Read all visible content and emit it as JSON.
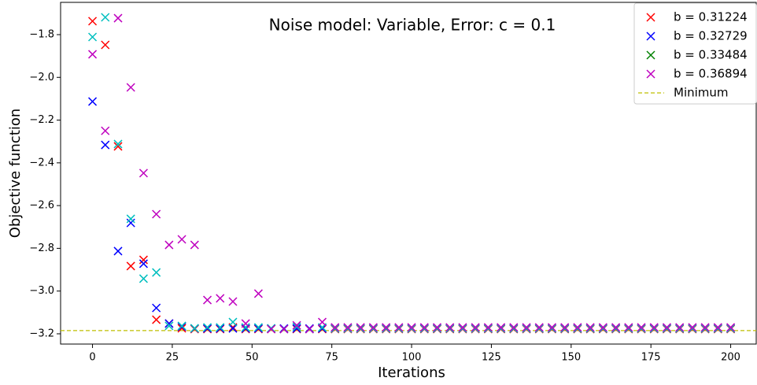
{
  "chart_data": {
    "type": "scatter",
    "title": "Noise model: Variable, Error: c = 0.1",
    "x_label": "Iterations",
    "y_label": "Objective function",
    "x": [
      0,
      4,
      8,
      12,
      16,
      20,
      24,
      28,
      32,
      36,
      40,
      44,
      48,
      52,
      56,
      60,
      64,
      68,
      72,
      76,
      80,
      84,
      88,
      92,
      96,
      100,
      104,
      108,
      112,
      116,
      120,
      124,
      128,
      132,
      136,
      140,
      144,
      148,
      152,
      156,
      160,
      164,
      168,
      172,
      176,
      180,
      184,
      188,
      192,
      196,
      200
    ],
    "series": [
      {
        "name": "b = 0.31224",
        "color": "#ff0000",
        "values": [
          -1.737,
          -1.848,
          -2.323,
          -2.883,
          -2.854,
          -3.134,
          -3.152,
          -3.174,
          -3.178,
          -3.178,
          -3.178,
          -3.17,
          -3.178,
          -3.178,
          -3.178,
          -3.178,
          -3.178,
          -3.178,
          -3.178,
          -3.178,
          -3.178,
          -3.178,
          -3.178,
          -3.178,
          -3.178,
          -3.178,
          -3.178,
          -3.178,
          -3.178,
          -3.178,
          -3.178,
          -3.178,
          -3.178,
          -3.178,
          -3.178,
          -3.178,
          -3.178,
          -3.178,
          -3.178,
          -3.178,
          -3.178,
          -3.178,
          -3.178,
          -3.178,
          -3.178,
          -3.178,
          -3.178,
          -3.178,
          -3.178,
          -3.178,
          -3.178
        ]
      },
      {
        "name": "b = 0.32729",
        "color": "#0000ff",
        "values": [
          -2.113,
          -2.316,
          -2.813,
          -2.681,
          -2.872,
          -3.079,
          -3.152,
          -3.167,
          -3.175,
          -3.175,
          -3.175,
          -3.175,
          -3.175,
          -3.175,
          -3.175,
          -3.175,
          -3.175,
          -3.175,
          -3.175,
          -3.175,
          -3.175,
          -3.175,
          -3.175,
          -3.175,
          -3.175,
          -3.175,
          -3.175,
          -3.175,
          -3.175,
          -3.175,
          -3.175,
          -3.175,
          -3.175,
          -3.175,
          -3.175,
          -3.175,
          -3.175,
          -3.175,
          -3.175,
          -3.175,
          -3.175,
          -3.175,
          -3.175,
          -3.175,
          -3.175,
          -3.175,
          -3.175,
          -3.175,
          -3.175,
          -3.175,
          -3.175
        ]
      },
      {
        "name": "b = 0.33484",
        "color": "#00bfbf",
        "legend_color": "#008000",
        "values": [
          -1.811,
          -1.719,
          -2.312,
          -2.662,
          -2.942,
          -2.913,
          -3.163,
          -3.163,
          -3.174,
          -3.17,
          -3.17,
          -3.145,
          -3.17,
          -3.17,
          -3.174,
          -3.178,
          -3.167,
          -3.178,
          -3.17,
          -3.175,
          -3.175,
          -3.175,
          -3.175,
          -3.175,
          -3.175,
          -3.175,
          -3.175,
          -3.175,
          -3.175,
          -3.175,
          -3.175,
          -3.175,
          -3.175,
          -3.175,
          -3.175,
          -3.175,
          -3.175,
          -3.175,
          -3.175,
          -3.175,
          -3.175,
          -3.175,
          -3.175,
          -3.175,
          -3.175,
          -3.175,
          -3.175,
          -3.175,
          -3.175,
          -3.175,
          -3.175
        ]
      },
      {
        "name": "b = 0.36894",
        "color": "#bf00bf",
        "values": [
          -1.892,
          -2.25,
          -1.723,
          -2.047,
          -2.448,
          -2.64,
          -2.784,
          -2.758,
          -2.784,
          -3.042,
          -3.034,
          -3.049,
          -3.152,
          -3.012,
          -3.178,
          -3.178,
          -3.16,
          -3.178,
          -3.145,
          -3.17,
          -3.17,
          -3.17,
          -3.17,
          -3.17,
          -3.17,
          -3.17,
          -3.17,
          -3.17,
          -3.17,
          -3.17,
          -3.17,
          -3.17,
          -3.17,
          -3.17,
          -3.17,
          -3.17,
          -3.17,
          -3.17,
          -3.17,
          -3.17,
          -3.17,
          -3.17,
          -3.17,
          -3.17,
          -3.17,
          -3.17,
          -3.17,
          -3.17,
          -3.17,
          -3.17,
          -3.17
        ]
      }
    ],
    "minimum": {
      "name": "Minimum",
      "value": -3.185,
      "color": "#bfbf00"
    },
    "xlim": [
      -10,
      208
    ],
    "xticks": [
      0,
      25,
      50,
      75,
      100,
      125,
      150,
      175,
      200
    ],
    "ylim": [
      -3.248,
      -1.649
    ],
    "yticks": [
      {
        "value": -3.2,
        "label": "−3.2"
      },
      {
        "value": -3.0,
        "label": "−3.0"
      },
      {
        "value": -2.8,
        "label": "−2.8"
      },
      {
        "value": -2.6,
        "label": "−2.6"
      },
      {
        "value": -2.4,
        "label": "−2.4"
      },
      {
        "value": -2.2,
        "label": "−2.2"
      },
      {
        "value": -2.0,
        "label": "−2.0"
      },
      {
        "value": -1.8,
        "label": "−1.8"
      }
    ],
    "legend": "upper right",
    "grid": false
  }
}
